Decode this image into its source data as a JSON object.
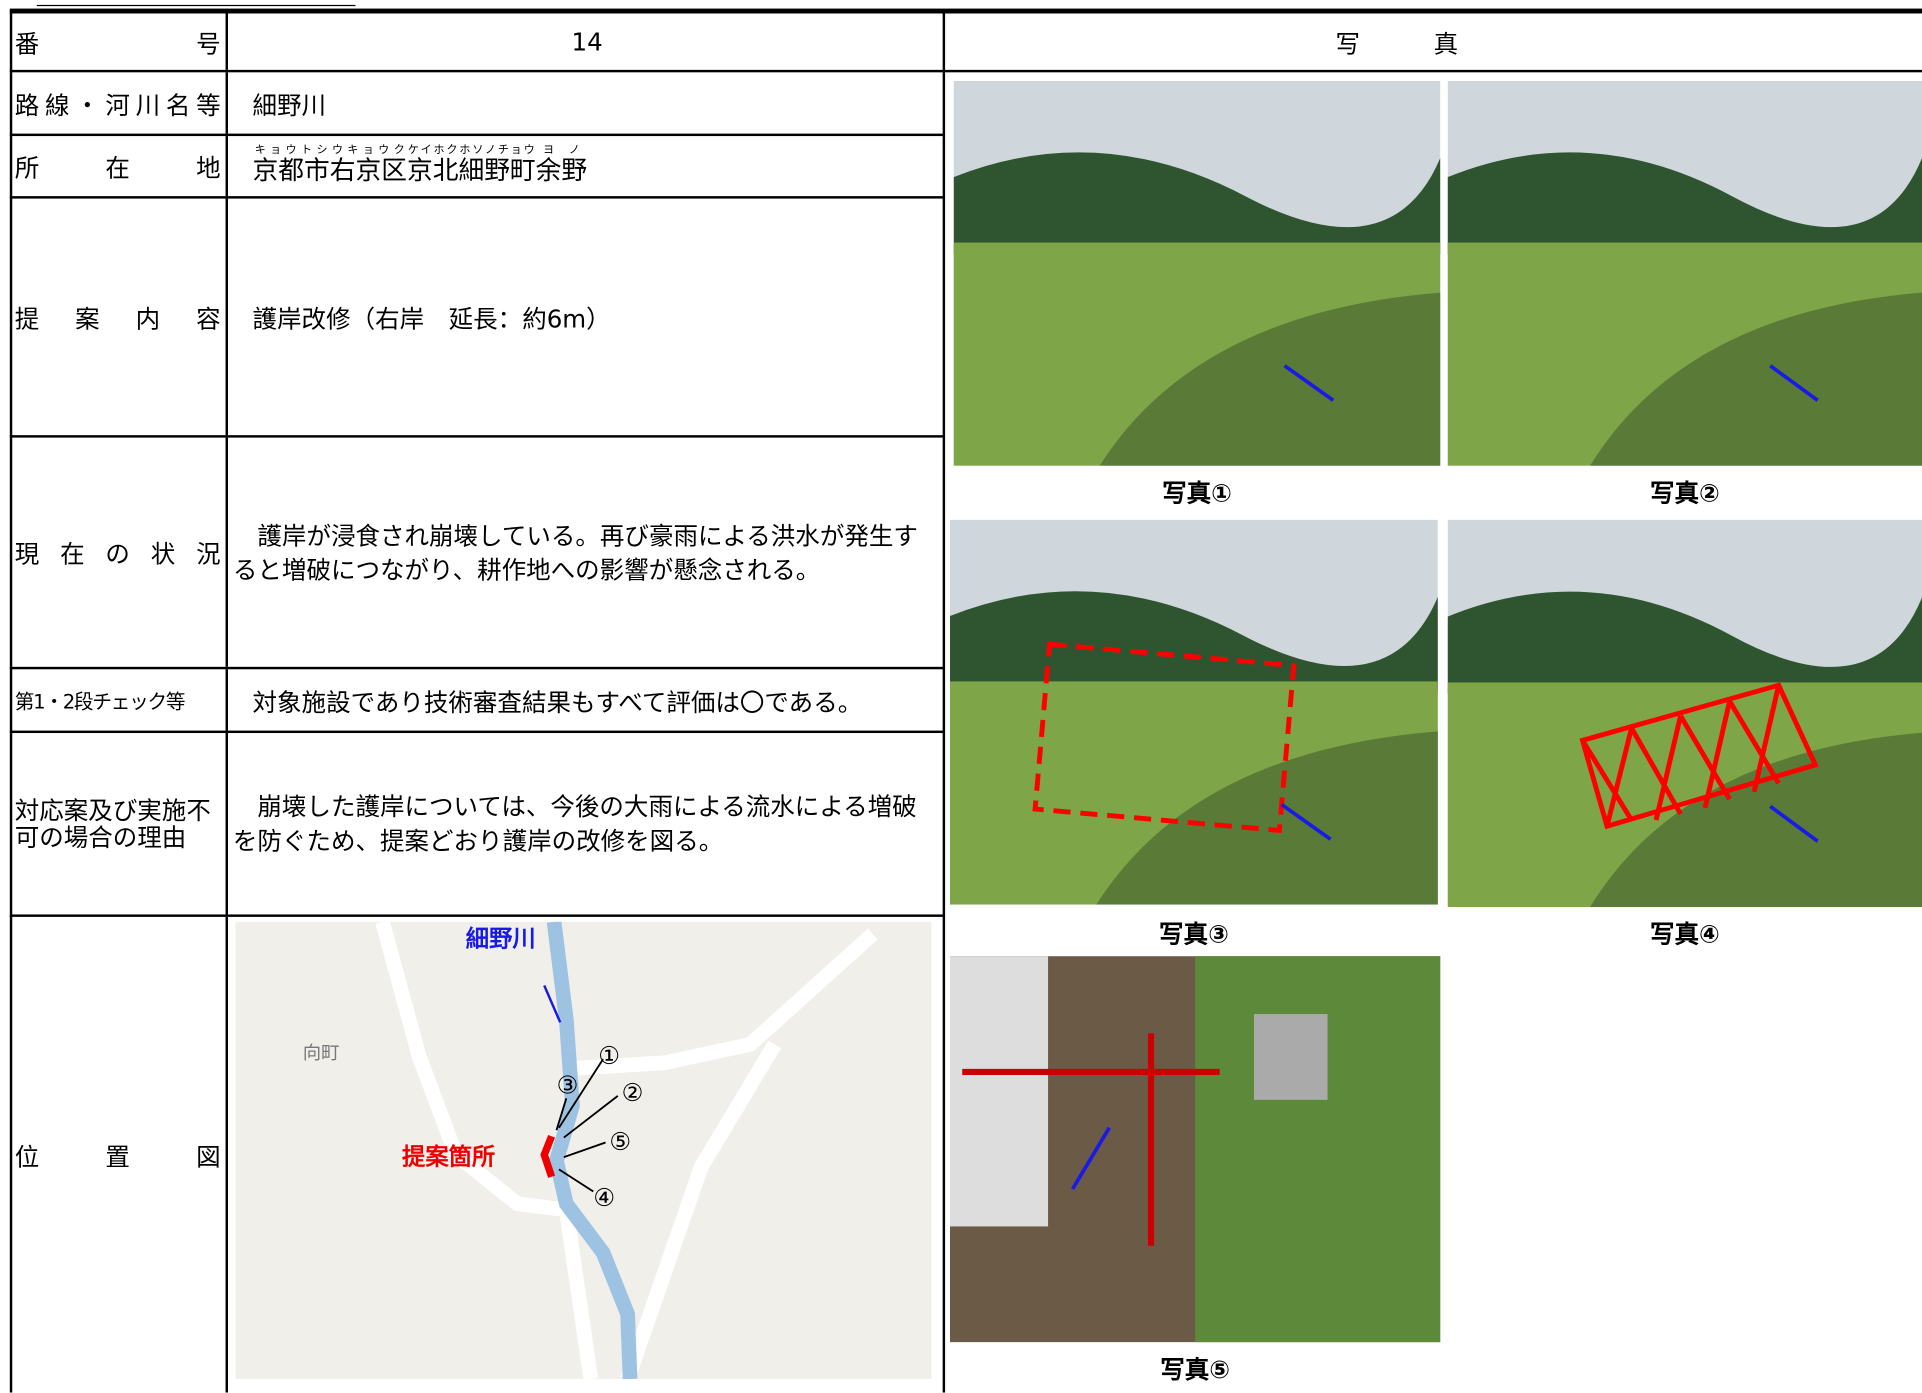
{
  "header": {
    "number_label": "番号",
    "number": "14",
    "photo_header": "写真"
  },
  "rows": [
    {
      "label": "路線・河川名等",
      "value": "細野川"
    },
    {
      "label": "所在地"
    },
    {
      "label": "提案内容",
      "value": "護岸改修（右岸　延長：約6m）"
    },
    {
      "label": "現在の状況",
      "value": "　護岸が浸食され崩壊している。再び豪雨による洪水が発生すると増破につながり、耕作地への影響が懸念される。"
    },
    {
      "label": "第1・2段チェック等",
      "value": "対象施設であり技術審査結果もすべて評価は〇である。"
    },
    {
      "label": "対応案及び実施不可の場合の理由",
      "value": "　崩壊した護岸については、今後の大雨による流水による増破を防ぐため、提案どおり護岸の改修を図る。"
    },
    {
      "label": "位置図"
    }
  ],
  "address": [
    {
      "text": "京都市",
      "ruby": "キョウトシ"
    },
    {
      "text": "右京区",
      "ruby": "ウキョウク"
    },
    {
      "text": "京北細野町",
      "ruby": "ケイホクホソノチョウ"
    },
    {
      "text": "余野",
      "ruby": "ヨノ"
    }
  ],
  "photos": [
    {
      "caption": "写真①"
    },
    {
      "caption": "写真②"
    },
    {
      "caption": "写真③"
    },
    {
      "caption": "写真④"
    },
    {
      "caption": "写真⑤"
    }
  ],
  "map": {
    "river": "細野川",
    "town": "向町",
    "site": "提案箇所",
    "markers": [
      "①",
      "②",
      "③",
      "④",
      "⑤"
    ]
  }
}
